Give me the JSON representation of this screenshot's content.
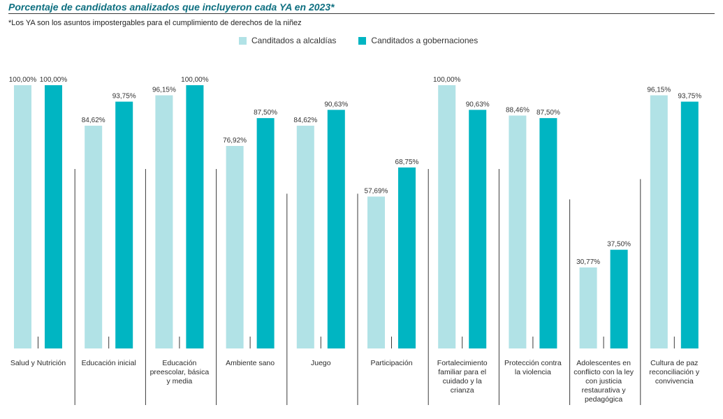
{
  "header": {
    "title": "Porcentaje de candidatos analizados que incluyeron cada YA en 2023*",
    "note": "*Los YA son los asuntos impostergables para el cumplimiento de derechos de la niñez"
  },
  "colors": {
    "alcaldias": "#b1e2e6",
    "gobernaciones": "#00b5c2",
    "title": "#0d6f80"
  },
  "chart_data": {
    "type": "bar",
    "categories": [
      "Salud y Nutrición",
      "Educación inicial",
      "Educación preescolar, básica y media",
      "Ambiente sano",
      "Juego",
      "Participación",
      "Fortalecimiento familiar para el cuidado y la crianza",
      "Protección contra la violencia",
      "Adolescentes en conflicto con la ley con justicia restaurativa y pedagógica",
      "Cultura de paz reconciliación y convivencia"
    ],
    "series": [
      {
        "name": "Canditados a alcaldías",
        "values": [
          100.0,
          84.62,
          96.15,
          76.92,
          84.62,
          57.69,
          100.0,
          88.46,
          30.77,
          96.15
        ],
        "labels": [
          "100,00%",
          "84,62%",
          "96,15%",
          "76,92%",
          "84,62%",
          "57,69%",
          "100,00%",
          "88,46%",
          "30,77%",
          "96,15%"
        ]
      },
      {
        "name": "Canditados a gobernaciones",
        "values": [
          100.0,
          93.75,
          100.0,
          87.5,
          90.63,
          68.75,
          90.63,
          87.5,
          37.5,
          93.75
        ],
        "labels": [
          "100,00%",
          "93,75%",
          "100,00%",
          "87,50%",
          "90,63%",
          "68,75%",
          "90,63%",
          "87,50%",
          "37,50%",
          "93,75%"
        ]
      }
    ],
    "ylim": [
      0,
      100
    ],
    "grid": false,
    "legend": "top-center"
  }
}
